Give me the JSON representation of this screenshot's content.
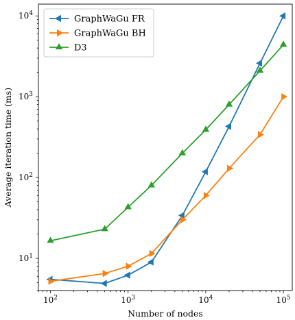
{
  "chart_data": {
    "type": "line",
    "xscale": "log",
    "yscale": "log",
    "xlabel": "Number of nodes",
    "ylabel": "Average iteration time (ms)",
    "xlim": [
      70,
      130000
    ],
    "ylim": [
      4,
      14000
    ],
    "x_ticks": [
      {
        "value": 100,
        "base": "10",
        "exp": "2"
      },
      {
        "value": 1000,
        "base": "10",
        "exp": "3"
      },
      {
        "value": 10000,
        "base": "10",
        "exp": "4"
      },
      {
        "value": 100000,
        "base": "10",
        "exp": "5"
      }
    ],
    "y_ticks": [
      {
        "value": 10,
        "base": "10",
        "exp": "1"
      },
      {
        "value": 100,
        "base": "10",
        "exp": "2"
      },
      {
        "value": 1000,
        "base": "10",
        "exp": "3"
      },
      {
        "value": 10000,
        "base": "10",
        "exp": "4"
      }
    ],
    "grid": false,
    "legend_position": "top-left",
    "series": [
      {
        "name": "GraphWaGu FR",
        "color": "#1f77b4",
        "marker": "triangle-left",
        "x": [
          100,
          500,
          1000,
          2000,
          5000,
          10000,
          20000,
          50000,
          100000
        ],
        "y": [
          5.5,
          4.9,
          6.2,
          9,
          34,
          118,
          430,
          2600,
          10000
        ]
      },
      {
        "name": "GraphWaGu BH",
        "color": "#ff7f0e",
        "marker": "triangle-right",
        "x": [
          100,
          500,
          1000,
          2000,
          5000,
          10000,
          20000,
          50000,
          100000
        ],
        "y": [
          5.2,
          6.5,
          8,
          11.5,
          30,
          60,
          130,
          340,
          1000
        ]
      },
      {
        "name": "D3",
        "color": "#2ca02c",
        "marker": "triangle-up",
        "x": [
          100,
          500,
          1000,
          2000,
          5000,
          10000,
          20000,
          50000,
          100000
        ],
        "y": [
          16.5,
          23,
          43,
          80,
          200,
          390,
          800,
          2100,
          4400
        ]
      }
    ]
  }
}
